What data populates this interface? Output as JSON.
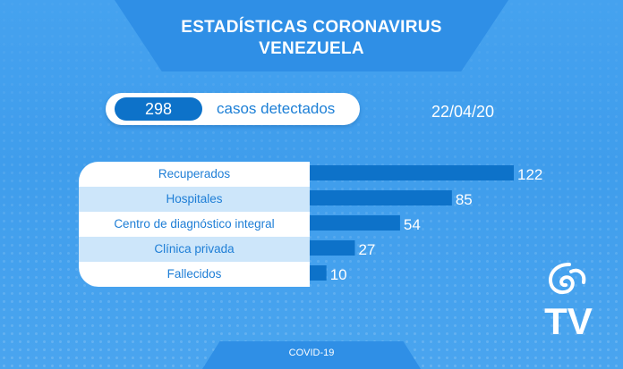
{
  "header": {
    "title_line1": "ESTADÍSTICAS CORONAVIRUS",
    "title_line2": "VENEZUELA"
  },
  "summary": {
    "count": "298",
    "label": "casos detectados",
    "date": "22/04/20"
  },
  "footer": {
    "tag": "COVID-19"
  },
  "logo": {
    "icon": "vtv-spiral-logo-icon",
    "text": "TV"
  },
  "colors": {
    "background": "#45a2ef",
    "bar": "#0d72c9",
    "label_text": "#1e7ed6",
    "row_alt": "#cde6fa"
  },
  "chart_data": {
    "type": "bar",
    "orientation": "horizontal",
    "categories": [
      "Recuperados",
      "Hospitales",
      "Centro de diagnóstico integral",
      "Clínica privada",
      "Fallecidos"
    ],
    "values": [
      122,
      85,
      54,
      27,
      10
    ],
    "data_labels": [
      "122",
      "85",
      "54",
      "27",
      "10"
    ],
    "xlim": [
      0,
      122
    ],
    "grid": false,
    "legend": "none"
  }
}
